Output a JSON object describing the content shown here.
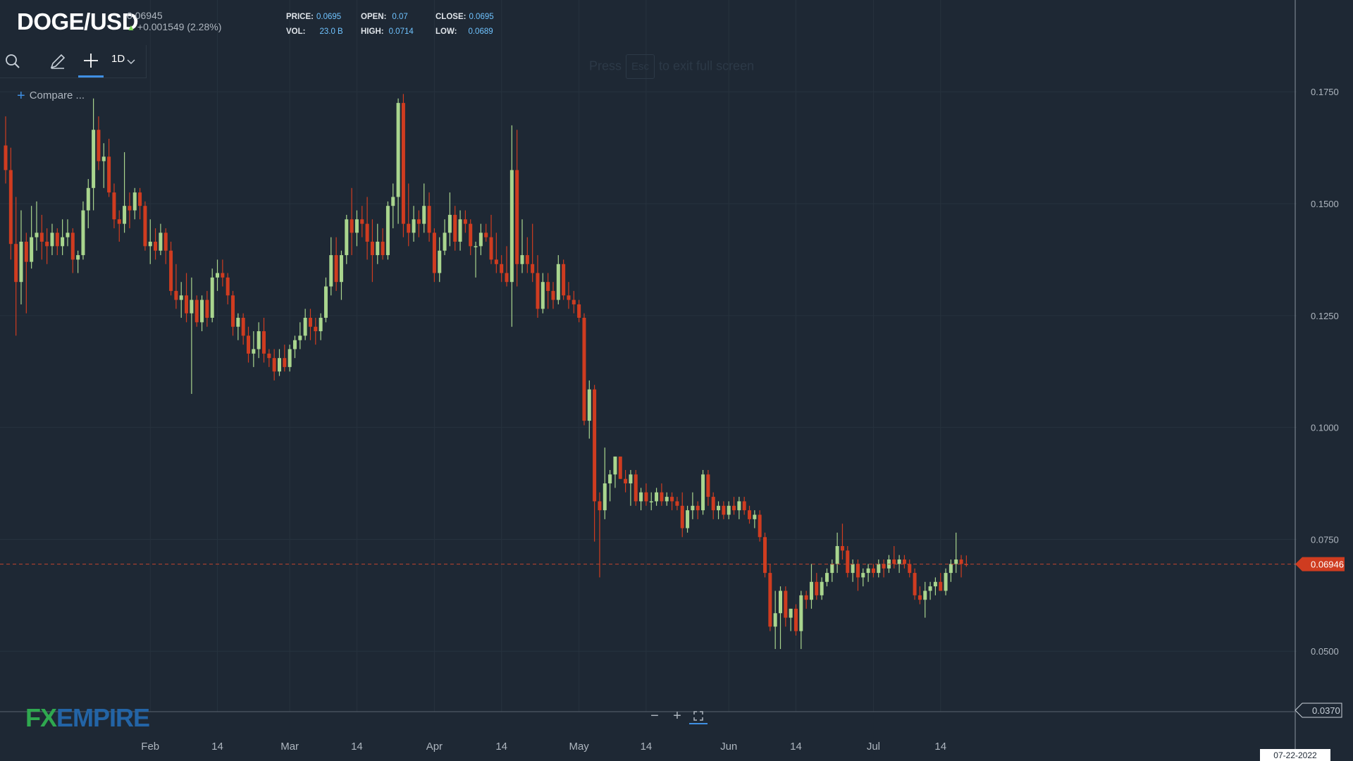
{
  "header": {
    "symbol": "DOGE/USD",
    "last_price": "0.06945",
    "change": "+0.001549 (2.28%)",
    "stats": {
      "price_label": "PRICE:",
      "price": "0.0695",
      "open_label": "OPEN:",
      "open": "0.07",
      "close_label": "CLOSE:",
      "close": "0.0695",
      "vol_label": "VOL:",
      "vol": "23.0 B",
      "high_label": "HIGH:",
      "high": "0.0714",
      "low_label": "LOW:",
      "low": "0.0689"
    }
  },
  "toolbar": {
    "interval": "1D",
    "compare_label": "Compare ..."
  },
  "hint": {
    "pre": "Press",
    "key": "Esc",
    "post": "to exit full screen"
  },
  "logo": {
    "fx": "FX",
    "empire": "EMPIRE"
  },
  "zoom_controls": {
    "minus": "−",
    "plus": "+"
  },
  "colors": {
    "background": "#1e2834",
    "up": "#a9d58e",
    "down": "#cf3c20",
    "grid": "#27323e",
    "price_line": "#c2432d",
    "axis_text": "#aeb6bf"
  },
  "chart_data": {
    "type": "candlestick",
    "symbol": "DOGE/USD",
    "interval": "1D",
    "y_axis": {
      "ticks": [
        "0.1750",
        "0.1500",
        "0.1250",
        "0.1000",
        "0.0750",
        "0.0500"
      ],
      "range": [
        0.0365,
        0.1955
      ]
    },
    "x_axis": {
      "labels": [
        "Feb",
        "14",
        "Mar",
        "14",
        "Apr",
        "14",
        "May",
        "14",
        "Jun",
        "14",
        "Jul",
        "14"
      ],
      "label_index": [
        28,
        41,
        55,
        68,
        83,
        96,
        111,
        124,
        140,
        153,
        168,
        181
      ]
    },
    "current_price_label": "0.06946",
    "current_price": 0.06946,
    "min_price_label": "0.0370",
    "min_price": 0.037,
    "date_label": "07-22-2022",
    "ohlc": [
      [
        0.163,
        0.1695,
        0.1545,
        0.1575
      ],
      [
        0.1575,
        0.1625,
        0.1375,
        0.141
      ],
      [
        0.141,
        0.1515,
        0.1205,
        0.1325
      ],
      [
        0.1325,
        0.1485,
        0.1275,
        0.1415
      ],
      [
        0.1415,
        0.1435,
        0.1255,
        0.137
      ],
      [
        0.137,
        0.1495,
        0.1355,
        0.1425
      ],
      [
        0.1425,
        0.1505,
        0.1395,
        0.1435
      ],
      [
        0.1435,
        0.1475,
        0.1375,
        0.1415
      ],
      [
        0.1415,
        0.1445,
        0.1365,
        0.1405
      ],
      [
        0.1405,
        0.1455,
        0.1385,
        0.1435
      ],
      [
        0.1435,
        0.1445,
        0.1385,
        0.1405
      ],
      [
        0.1405,
        0.1465,
        0.1385,
        0.1425
      ],
      [
        0.1425,
        0.1465,
        0.1405,
        0.1435
      ],
      [
        0.1435,
        0.1445,
        0.1345,
        0.1375
      ],
      [
        0.1375,
        0.1395,
        0.1345,
        0.1385
      ],
      [
        0.1385,
        0.1505,
        0.1375,
        0.1485
      ],
      [
        0.1485,
        0.1555,
        0.1445,
        0.1535
      ],
      [
        0.1535,
        0.1735,
        0.1485,
        0.1665
      ],
      [
        0.1665,
        0.1695,
        0.1575,
        0.1595
      ],
      [
        0.1595,
        0.1635,
        0.1535,
        0.1605
      ],
      [
        0.1605,
        0.1645,
        0.1515,
        0.1525
      ],
      [
        0.1525,
        0.1545,
        0.1445,
        0.1465
      ],
      [
        0.1465,
        0.1485,
        0.1415,
        0.1455
      ],
      [
        0.1455,
        0.1615,
        0.1435,
        0.1495
      ],
      [
        0.1495,
        0.1525,
        0.1445,
        0.1485
      ],
      [
        0.1485,
        0.1535,
        0.1465,
        0.1525
      ],
      [
        0.1525,
        0.1535,
        0.1465,
        0.1495
      ],
      [
        0.1495,
        0.1505,
        0.1395,
        0.1405
      ],
      [
        0.1405,
        0.1465,
        0.1365,
        0.1415
      ],
      [
        0.1415,
        0.1445,
        0.1375,
        0.1395
      ],
      [
        0.1395,
        0.1455,
        0.1385,
        0.1435
      ],
      [
        0.1435,
        0.1445,
        0.1365,
        0.1395
      ],
      [
        0.1395,
        0.1415,
        0.1295,
        0.1305
      ],
      [
        0.1305,
        0.1365,
        0.1265,
        0.1285
      ],
      [
        0.1285,
        0.1325,
        0.1245,
        0.1295
      ],
      [
        0.1295,
        0.1345,
        0.1235,
        0.1255
      ],
      [
        0.1255,
        0.1335,
        0.1075,
        0.1285
      ],
      [
        0.1285,
        0.1295,
        0.1225,
        0.1235
      ],
      [
        0.1235,
        0.1295,
        0.1215,
        0.1285
      ],
      [
        0.1285,
        0.1305,
        0.1225,
        0.1245
      ],
      [
        0.1245,
        0.1355,
        0.1235,
        0.1335
      ],
      [
        0.1335,
        0.1375,
        0.1305,
        0.1345
      ],
      [
        0.1345,
        0.1375,
        0.1315,
        0.1335
      ],
      [
        0.1335,
        0.1345,
        0.1275,
        0.1295
      ],
      [
        0.1295,
        0.1305,
        0.1205,
        0.1225
      ],
      [
        0.1225,
        0.1255,
        0.1195,
        0.1245
      ],
      [
        0.1245,
        0.1255,
        0.1185,
        0.1205
      ],
      [
        0.1205,
        0.1225,
        0.1145,
        0.1165
      ],
      [
        0.1165,
        0.1215,
        0.1135,
        0.1175
      ],
      [
        0.1175,
        0.1235,
        0.1155,
        0.1215
      ],
      [
        0.1215,
        0.1245,
        0.1145,
        0.1165
      ],
      [
        0.1165,
        0.1175,
        0.1135,
        0.1155
      ],
      [
        0.1155,
        0.1175,
        0.1105,
        0.1125
      ],
      [
        0.1125,
        0.1175,
        0.1115,
        0.1155
      ],
      [
        0.1155,
        0.1185,
        0.1125,
        0.1135
      ],
      [
        0.1135,
        0.1185,
        0.1125,
        0.1175
      ],
      [
        0.1175,
        0.1205,
        0.1155,
        0.1195
      ],
      [
        0.1195,
        0.1235,
        0.1175,
        0.1205
      ],
      [
        0.1205,
        0.1265,
        0.1195,
        0.1245
      ],
      [
        0.1245,
        0.1265,
        0.1195,
        0.1225
      ],
      [
        0.1225,
        0.1245,
        0.1185,
        0.1215
      ],
      [
        0.1215,
        0.1255,
        0.1195,
        0.1245
      ],
      [
        0.1245,
        0.1335,
        0.1235,
        0.1315
      ],
      [
        0.1315,
        0.1425,
        0.1295,
        0.1385
      ],
      [
        0.1385,
        0.1425,
        0.1305,
        0.1325
      ],
      [
        0.1325,
        0.1395,
        0.1285,
        0.1385
      ],
      [
        0.1385,
        0.1475,
        0.1365,
        0.1465
      ],
      [
        0.1465,
        0.1535,
        0.1385,
        0.1435
      ],
      [
        0.1435,
        0.1485,
        0.1405,
        0.1465
      ],
      [
        0.1465,
        0.1495,
        0.1425,
        0.1455
      ],
      [
        0.1455,
        0.1515,
        0.1375,
        0.1415
      ],
      [
        0.1415,
        0.1465,
        0.1325,
        0.1385
      ],
      [
        0.1385,
        0.1455,
        0.1365,
        0.1415
      ],
      [
        0.1415,
        0.1445,
        0.1375,
        0.1385
      ],
      [
        0.1385,
        0.1505,
        0.1375,
        0.1495
      ],
      [
        0.1495,
        0.1545,
        0.1445,
        0.1515
      ],
      [
        0.1515,
        0.1735,
        0.1455,
        0.1725
      ],
      [
        0.1725,
        0.1745,
        0.1425,
        0.1455
      ],
      [
        0.1455,
        0.1545,
        0.1405,
        0.1435
      ],
      [
        0.1435,
        0.1495,
        0.1415,
        0.1465
      ],
      [
        0.1465,
        0.1485,
        0.1425,
        0.1455
      ],
      [
        0.1455,
        0.1545,
        0.1435,
        0.1495
      ],
      [
        0.1495,
        0.1525,
        0.1415,
        0.1435
      ],
      [
        0.1435,
        0.1445,
        0.1325,
        0.1345
      ],
      [
        0.1345,
        0.1425,
        0.1325,
        0.1395
      ],
      [
        0.1395,
        0.1465,
        0.1385,
        0.1435
      ],
      [
        0.1435,
        0.1525,
        0.1405,
        0.1475
      ],
      [
        0.1475,
        0.1495,
        0.1395,
        0.1415
      ],
      [
        0.1415,
        0.1485,
        0.1395,
        0.1465
      ],
      [
        0.1465,
        0.1485,
        0.1435,
        0.1455
      ],
      [
        0.1455,
        0.1465,
        0.1385,
        0.1405
      ],
      [
        0.1405,
        0.1415,
        0.1335,
        0.1405
      ],
      [
        0.1405,
        0.1455,
        0.1385,
        0.1435
      ],
      [
        0.1435,
        0.1455,
        0.1415,
        0.1425
      ],
      [
        0.1425,
        0.1475,
        0.1365,
        0.1375
      ],
      [
        0.1375,
        0.1435,
        0.1345,
        0.1365
      ],
      [
        0.1365,
        0.1385,
        0.1325,
        0.1345
      ],
      [
        0.1345,
        0.1405,
        0.1315,
        0.1325
      ],
      [
        0.1325,
        0.1675,
        0.1225,
        0.1575
      ],
      [
        0.1575,
        0.1665,
        0.1315,
        0.1365
      ],
      [
        0.1365,
        0.1465,
        0.1345,
        0.1385
      ],
      [
        0.1385,
        0.1425,
        0.1345,
        0.1365
      ],
      [
        0.1365,
        0.1455,
        0.1325,
        0.1345
      ],
      [
        0.1345,
        0.1385,
        0.1245,
        0.1265
      ],
      [
        0.1265,
        0.1345,
        0.1255,
        0.1325
      ],
      [
        0.1325,
        0.1345,
        0.1265,
        0.1305
      ],
      [
        0.1305,
        0.1325,
        0.1265,
        0.1285
      ],
      [
        0.1285,
        0.1385,
        0.1275,
        0.1365
      ],
      [
        0.1365,
        0.1375,
        0.1285,
        0.1295
      ],
      [
        0.1295,
        0.1325,
        0.1265,
        0.1285
      ],
      [
        0.1285,
        0.1305,
        0.1255,
        0.1275
      ],
      [
        0.1275,
        0.1285,
        0.1235,
        0.1245
      ],
      [
        0.1245,
        0.1255,
        0.1005,
        0.1015
      ],
      [
        0.1015,
        0.1105,
        0.0975,
        0.1085
      ],
      [
        0.1085,
        0.1095,
        0.0745,
        0.0835
      ],
      [
        0.0835,
        0.0855,
        0.0665,
        0.0815
      ],
      [
        0.0815,
        0.0955,
        0.0795,
        0.0875
      ],
      [
        0.0875,
        0.0905,
        0.0835,
        0.0895
      ],
      [
        0.0895,
        0.0935,
        0.0865,
        0.0935
      ],
      [
        0.0935,
        0.0935,
        0.0885,
        0.0885
      ],
      [
        0.0885,
        0.0905,
        0.0855,
        0.0875
      ],
      [
        0.0875,
        0.0905,
        0.0825,
        0.0895
      ],
      [
        0.0895,
        0.0905,
        0.0825,
        0.0835
      ],
      [
        0.0835,
        0.0865,
        0.0815,
        0.0855
      ],
      [
        0.0855,
        0.0875,
        0.0825,
        0.0835
      ],
      [
        0.0835,
        0.0855,
        0.0815,
        0.0835
      ],
      [
        0.0835,
        0.0865,
        0.0825,
        0.0855
      ],
      [
        0.0855,
        0.0875,
        0.0825,
        0.0835
      ],
      [
        0.0835,
        0.0855,
        0.0825,
        0.0845
      ],
      [
        0.0845,
        0.0855,
        0.0815,
        0.0835
      ],
      [
        0.0835,
        0.0845,
        0.0815,
        0.0825
      ],
      [
        0.0825,
        0.0855,
        0.0755,
        0.0775
      ],
      [
        0.0775,
        0.0825,
        0.0765,
        0.0815
      ],
      [
        0.0815,
        0.0855,
        0.0795,
        0.0825
      ],
      [
        0.0825,
        0.0835,
        0.0795,
        0.0815
      ],
      [
        0.0815,
        0.0905,
        0.0805,
        0.0895
      ],
      [
        0.0895,
        0.0905,
        0.0825,
        0.0845
      ],
      [
        0.0845,
        0.0855,
        0.0795,
        0.0815
      ],
      [
        0.0815,
        0.0835,
        0.0795,
        0.0825
      ],
      [
        0.0825,
        0.0835,
        0.0795,
        0.0805
      ],
      [
        0.0805,
        0.0835,
        0.0795,
        0.0825
      ],
      [
        0.0825,
        0.0845,
        0.0805,
        0.0815
      ],
      [
        0.0815,
        0.0845,
        0.0795,
        0.0835
      ],
      [
        0.0835,
        0.0845,
        0.0805,
        0.0815
      ],
      [
        0.0815,
        0.0825,
        0.0785,
        0.0795
      ],
      [
        0.0795,
        0.0815,
        0.0775,
        0.0805
      ],
      [
        0.0805,
        0.0815,
        0.0745,
        0.0755
      ],
      [
        0.0755,
        0.0765,
        0.0665,
        0.0675
      ],
      [
        0.0675,
        0.0695,
        0.0545,
        0.0555
      ],
      [
        0.0555,
        0.0635,
        0.0505,
        0.0585
      ],
      [
        0.0585,
        0.0645,
        0.0505,
        0.0635
      ],
      [
        0.0635,
        0.0645,
        0.0555,
        0.0575
      ],
      [
        0.0575,
        0.0595,
        0.0545,
        0.0595
      ],
      [
        0.0595,
        0.0605,
        0.0535,
        0.0545
      ],
      [
        0.0545,
        0.0635,
        0.0505,
        0.0625
      ],
      [
        0.0625,
        0.0635,
        0.0595,
        0.0615
      ],
      [
        0.0615,
        0.0695,
        0.0595,
        0.0655
      ],
      [
        0.0655,
        0.0675,
        0.0615,
        0.0625
      ],
      [
        0.0625,
        0.0665,
        0.0615,
        0.0655
      ],
      [
        0.0655,
        0.0685,
        0.0645,
        0.0675
      ],
      [
        0.0675,
        0.0705,
        0.0655,
        0.0695
      ],
      [
        0.0695,
        0.0765,
        0.0675,
        0.0735
      ],
      [
        0.0735,
        0.0785,
        0.0705,
        0.0725
      ],
      [
        0.0725,
        0.0735,
        0.0665,
        0.0675
      ],
      [
        0.0675,
        0.0705,
        0.0655,
        0.0695
      ],
      [
        0.0695,
        0.0705,
        0.0635,
        0.0665
      ],
      [
        0.0665,
        0.0685,
        0.0645,
        0.0675
      ],
      [
        0.0675,
        0.0695,
        0.0655,
        0.0685
      ],
      [
        0.0685,
        0.0695,
        0.0665,
        0.0675
      ],
      [
        0.0675,
        0.0705,
        0.0665,
        0.0695
      ],
      [
        0.0695,
        0.0705,
        0.0665,
        0.0685
      ],
      [
        0.0685,
        0.0715,
        0.0675,
        0.0705
      ],
      [
        0.0705,
        0.0735,
        0.0685,
        0.0695
      ],
      [
        0.0695,
        0.0715,
        0.0675,
        0.0705
      ],
      [
        0.0705,
        0.0715,
        0.0685,
        0.0695
      ],
      [
        0.0695,
        0.0705,
        0.0665,
        0.0675
      ],
      [
        0.0675,
        0.0685,
        0.0615,
        0.0625
      ],
      [
        0.0625,
        0.0645,
        0.0605,
        0.0615
      ],
      [
        0.0615,
        0.0655,
        0.0575,
        0.0635
      ],
      [
        0.0635,
        0.0655,
        0.0615,
        0.0645
      ],
      [
        0.0645,
        0.0665,
        0.0625,
        0.0655
      ],
      [
        0.0655,
        0.0675,
        0.0635,
        0.0635
      ],
      [
        0.0635,
        0.0685,
        0.0625,
        0.0675
      ],
      [
        0.0675,
        0.0705,
        0.0655,
        0.0695
      ],
      [
        0.0695,
        0.0765,
        0.0675,
        0.0705
      ],
      [
        0.0705,
        0.0715,
        0.0665,
        0.0695
      ],
      [
        0.0695,
        0.0714,
        0.0689,
        0.06945
      ]
    ]
  }
}
